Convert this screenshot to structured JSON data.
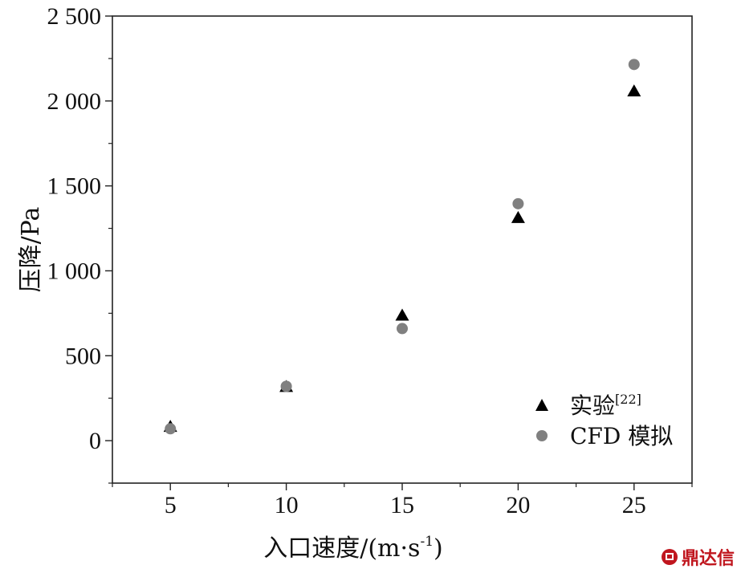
{
  "chart_data": {
    "type": "scatter",
    "xlabel": "入口速度/(m·s",
    "xlabel_sup": "-1",
    "xlabel_tail": ")",
    "ylabel": "压降/Pa",
    "xlim": [
      2.5,
      27.5
    ],
    "ylim": [
      -250,
      2500
    ],
    "x_ticks": [
      5,
      10,
      15,
      20,
      25
    ],
    "x_tick_labels": [
      "5",
      "10",
      "15",
      "20",
      "25"
    ],
    "y_ticks": [
      0,
      500,
      1000,
      1500,
      2000,
      2500
    ],
    "y_tick_labels": [
      "0",
      "500",
      "1 000",
      "1 500",
      "2 000",
      "2 500"
    ],
    "grid": false,
    "legend_position": "bottom-right",
    "series": [
      {
        "name": "实验",
        "name_sup": "[22]",
        "marker": "triangle",
        "color": "#000000",
        "x": [
          5,
          10,
          15,
          20,
          25
        ],
        "y": [
          80,
          315,
          735,
          1310,
          2055
        ]
      },
      {
        "name": "CFD 模拟",
        "marker": "circle",
        "color": "#808080",
        "x": [
          5,
          10,
          15,
          20,
          25
        ],
        "y": [
          70,
          320,
          660,
          1395,
          2215
        ]
      }
    ]
  },
  "watermark": {
    "text": "鼎达信",
    "color": "#c0161e"
  }
}
